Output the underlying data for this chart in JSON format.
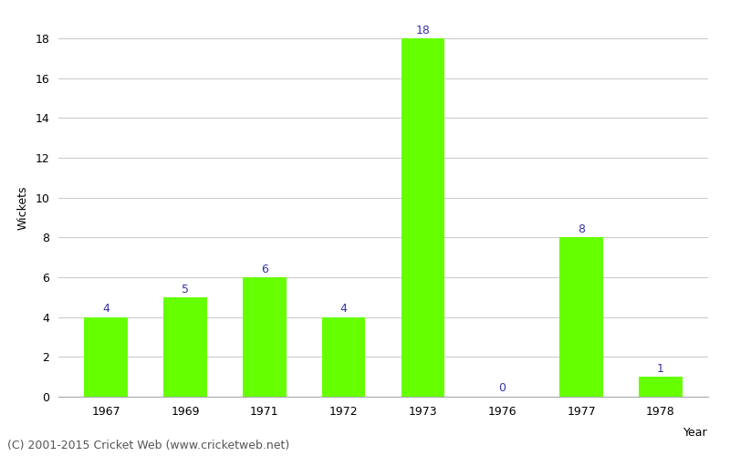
{
  "years": [
    "1967",
    "1969",
    "1971",
    "1972",
    "1973",
    "1976",
    "1977",
    "1978"
  ],
  "wickets": [
    4,
    5,
    6,
    4,
    18,
    0,
    8,
    1
  ],
  "bar_color": "#66ff00",
  "label_color": "#3333aa",
  "ylabel": "Wickets",
  "xlabel": "Year",
  "ylim": [
    0,
    19
  ],
  "yticks": [
    0,
    2,
    4,
    6,
    8,
    10,
    12,
    14,
    16,
    18
  ],
  "footnote": "(C) 2001-2015 Cricket Web (www.cricketweb.net)",
  "background_color": "#ffffff",
  "grid_color": "#cccccc",
  "label_fontsize": 9,
  "axis_fontsize": 9,
  "footnote_fontsize": 9,
  "bar_width": 0.55
}
